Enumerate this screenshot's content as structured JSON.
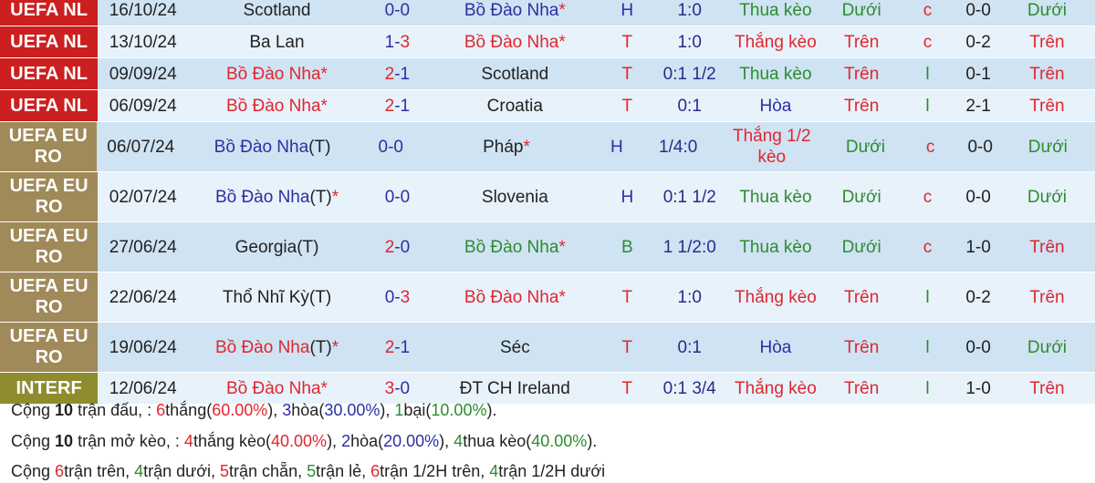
{
  "colors": {
    "red": "#e0262f",
    "blue": "#2b2fa3",
    "green": "#2e8b2e",
    "dark": "#222222",
    "row_dark": "#cfe3f3",
    "row_light": "#e7f2fb",
    "nl": "#cc1f1f",
    "euro": "#a08a5a",
    "interf": "#8e8c2e"
  },
  "matches": [
    {
      "comp": "UEFA NL",
      "comp_color": "nl",
      "date": "16/10/24",
      "home": {
        "name": "Scotland",
        "color": "dark",
        "suffix": "",
        "star": false
      },
      "score": {
        "h": "0",
        "hc": "blue",
        "a": "0",
        "ac": "blue"
      },
      "away": {
        "name": "Bồ Đào Nha",
        "color": "blue",
        "suffix": "",
        "star": true
      },
      "result": "H",
      "result_color": "blue",
      "handicap": "1:0",
      "keo": "Thua kèo",
      "keo_color": "green",
      "ou": "Dưới",
      "ou_color": "green",
      "cl": "c",
      "cl_color": "red",
      "ht": "0-0",
      "last": "Dưới",
      "last_color": "green"
    },
    {
      "comp": "UEFA NL",
      "comp_color": "nl",
      "date": "13/10/24",
      "home": {
        "name": "Ba Lan",
        "color": "dark",
        "suffix": "",
        "star": false
      },
      "score": {
        "h": "1",
        "hc": "blue",
        "a": "3",
        "ac": "red"
      },
      "away": {
        "name": "Bồ Đào Nha",
        "color": "red",
        "suffix": "",
        "star": true
      },
      "result": "T",
      "result_color": "red",
      "handicap": "1:0",
      "keo": "Thắng kèo",
      "keo_color": "red",
      "ou": "Trên",
      "ou_color": "red",
      "cl": "c",
      "cl_color": "red",
      "ht": "0-2",
      "last": "Trên",
      "last_color": "red"
    },
    {
      "comp": "UEFA NL",
      "comp_color": "nl",
      "date": "09/09/24",
      "home": {
        "name": "Bồ Đào Nha",
        "color": "red",
        "suffix": "",
        "star": true
      },
      "score": {
        "h": "2",
        "hc": "red",
        "a": "1",
        "ac": "blue"
      },
      "away": {
        "name": "Scotland",
        "color": "dark",
        "suffix": "",
        "star": false
      },
      "result": "T",
      "result_color": "red",
      "handicap": "0:1 1/2",
      "keo": "Thua kèo",
      "keo_color": "green",
      "ou": "Trên",
      "ou_color": "red",
      "cl": "l",
      "cl_color": "green",
      "ht": "0-1",
      "last": "Trên",
      "last_color": "red"
    },
    {
      "comp": "UEFA NL",
      "comp_color": "nl",
      "date": "06/09/24",
      "home": {
        "name": "Bồ Đào Nha",
        "color": "red",
        "suffix": "",
        "star": true
      },
      "score": {
        "h": "2",
        "hc": "red",
        "a": "1",
        "ac": "blue"
      },
      "away": {
        "name": "Croatia",
        "color": "dark",
        "suffix": "",
        "star": false
      },
      "result": "T",
      "result_color": "red",
      "handicap": "0:1",
      "keo": "Hòa",
      "keo_color": "blue",
      "ou": "Trên",
      "ou_color": "red",
      "cl": "l",
      "cl_color": "green",
      "ht": "2-1",
      "last": "Trên",
      "last_color": "red"
    },
    {
      "comp": "UEFA EURO",
      "comp_color": "euro",
      "date": "06/07/24",
      "home": {
        "name": "Bồ Đào Nha",
        "color": "blue",
        "suffix": "(T)",
        "star": false
      },
      "score": {
        "h": "0",
        "hc": "blue",
        "a": "0",
        "ac": "blue"
      },
      "away": {
        "name": "Pháp",
        "color": "dark",
        "suffix": "",
        "star": true
      },
      "result": "H",
      "result_color": "blue",
      "handicap": "1/4:0",
      "keo": "Thắng 1/2 kèo",
      "keo_color": "red",
      "ou": "Dưới",
      "ou_color": "green",
      "cl": "c",
      "cl_color": "red",
      "ht": "0-0",
      "last": "Dưới",
      "last_color": "green"
    },
    {
      "comp": "UEFA EURO",
      "comp_color": "euro",
      "date": "02/07/24",
      "home": {
        "name": "Bồ Đào Nha",
        "color": "blue",
        "suffix": "(T)",
        "star": true
      },
      "score": {
        "h": "0",
        "hc": "blue",
        "a": "0",
        "ac": "blue"
      },
      "away": {
        "name": "Slovenia",
        "color": "dark",
        "suffix": "",
        "star": false
      },
      "result": "H",
      "result_color": "blue",
      "handicap": "0:1 1/2",
      "keo": "Thua kèo",
      "keo_color": "green",
      "ou": "Dưới",
      "ou_color": "green",
      "cl": "c",
      "cl_color": "red",
      "ht": "0-0",
      "last": "Dưới",
      "last_color": "green"
    },
    {
      "comp": "UEFA EURO",
      "comp_color": "euro",
      "date": "27/06/24",
      "home": {
        "name": "Georgia",
        "color": "dark",
        "suffix": "(T)",
        "star": false
      },
      "score": {
        "h": "2",
        "hc": "red",
        "a": "0",
        "ac": "blue"
      },
      "away": {
        "name": "Bồ Đào Nha",
        "color": "green",
        "suffix": "",
        "star": true
      },
      "result": "B",
      "result_color": "green",
      "handicap": "1 1/2:0",
      "keo": "Thua kèo",
      "keo_color": "green",
      "ou": "Dưới",
      "ou_color": "green",
      "cl": "c",
      "cl_color": "red",
      "ht": "1-0",
      "last": "Trên",
      "last_color": "red"
    },
    {
      "comp": "UEFA EURO",
      "comp_color": "euro",
      "date": "22/06/24",
      "home": {
        "name": "Thổ Nhĩ Kỳ",
        "color": "dark",
        "suffix": "(T)",
        "star": false
      },
      "score": {
        "h": "0",
        "hc": "blue",
        "a": "3",
        "ac": "red"
      },
      "away": {
        "name": "Bồ Đào Nha",
        "color": "red",
        "suffix": "",
        "star": true
      },
      "result": "T",
      "result_color": "red",
      "handicap": "1:0",
      "keo": "Thắng kèo",
      "keo_color": "red",
      "ou": "Trên",
      "ou_color": "red",
      "cl": "l",
      "cl_color": "green",
      "ht": "0-2",
      "last": "Trên",
      "last_color": "red"
    },
    {
      "comp": "UEFA EURO",
      "comp_color": "euro",
      "date": "19/06/24",
      "home": {
        "name": "Bồ Đào Nha",
        "color": "red",
        "suffix": "(T)",
        "star": true
      },
      "score": {
        "h": "2",
        "hc": "red",
        "a": "1",
        "ac": "blue"
      },
      "away": {
        "name": "Séc",
        "color": "dark",
        "suffix": "",
        "star": false
      },
      "result": "T",
      "result_color": "red",
      "handicap": "0:1",
      "keo": "Hòa",
      "keo_color": "blue",
      "ou": "Trên",
      "ou_color": "red",
      "cl": "l",
      "cl_color": "green",
      "ht": "0-0",
      "last": "Dưới",
      "last_color": "green"
    },
    {
      "comp": "INTERF",
      "comp_color": "interf",
      "date": "12/06/24",
      "home": {
        "name": "Bồ Đào Nha",
        "color": "red",
        "suffix": "",
        "star": true
      },
      "score": {
        "h": "3",
        "hc": "red",
        "a": "0",
        "ac": "blue"
      },
      "away": {
        "name": "ĐT CH Ireland",
        "color": "dark",
        "suffix": "",
        "star": false
      },
      "result": "T",
      "result_color": "red",
      "handicap": "0:1 3/4",
      "keo": "Thắng kèo",
      "keo_color": "red",
      "ou": "Trên",
      "ou_color": "red",
      "cl": "l",
      "cl_color": "green",
      "ht": "1-0",
      "last": "Trên",
      "last_color": "red"
    }
  ],
  "summary": [
    [
      {
        "t": "Cộng ",
        "c": "dark"
      },
      {
        "t": "10",
        "c": "dark",
        "b": true
      },
      {
        "t": " trận đấu, : ",
        "c": "dark"
      },
      {
        "t": "6",
        "c": "red"
      },
      {
        "t": "thắng(",
        "c": "dark"
      },
      {
        "t": "60.00%",
        "c": "red"
      },
      {
        "t": "), ",
        "c": "dark"
      },
      {
        "t": "3",
        "c": "blue"
      },
      {
        "t": "hòa(",
        "c": "dark"
      },
      {
        "t": "30.00%",
        "c": "blue"
      },
      {
        "t": "), ",
        "c": "dark"
      },
      {
        "t": "1",
        "c": "green"
      },
      {
        "t": "bại(",
        "c": "dark"
      },
      {
        "t": "10.00%",
        "c": "green"
      },
      {
        "t": ").",
        "c": "dark"
      }
    ],
    [
      {
        "t": "Cộng ",
        "c": "dark"
      },
      {
        "t": "10",
        "c": "dark",
        "b": true
      },
      {
        "t": " trận mở kèo, : ",
        "c": "dark"
      },
      {
        "t": "4",
        "c": "red"
      },
      {
        "t": "thắng kèo(",
        "c": "dark"
      },
      {
        "t": "40.00%",
        "c": "red"
      },
      {
        "t": "), ",
        "c": "dark"
      },
      {
        "t": "2",
        "c": "blue"
      },
      {
        "t": "hòa(",
        "c": "dark"
      },
      {
        "t": "20.00%",
        "c": "blue"
      },
      {
        "t": "), ",
        "c": "dark"
      },
      {
        "t": "4",
        "c": "green"
      },
      {
        "t": "thua kèo(",
        "c": "dark"
      },
      {
        "t": "40.00%",
        "c": "green"
      },
      {
        "t": ").",
        "c": "dark"
      }
    ],
    [
      {
        "t": "Cộng ",
        "c": "dark"
      },
      {
        "t": "6",
        "c": "red"
      },
      {
        "t": "trận trên, ",
        "c": "dark"
      },
      {
        "t": "4",
        "c": "green"
      },
      {
        "t": "trận dưới, ",
        "c": "dark"
      },
      {
        "t": "5",
        "c": "red"
      },
      {
        "t": "trận chẵn, ",
        "c": "dark"
      },
      {
        "t": "5",
        "c": "green"
      },
      {
        "t": "trận lẻ, ",
        "c": "dark"
      },
      {
        "t": "6",
        "c": "red"
      },
      {
        "t": "trận 1/2H trên, ",
        "c": "dark"
      },
      {
        "t": "4",
        "c": "green"
      },
      {
        "t": "trận 1/2H dưới",
        "c": "dark"
      }
    ]
  ]
}
